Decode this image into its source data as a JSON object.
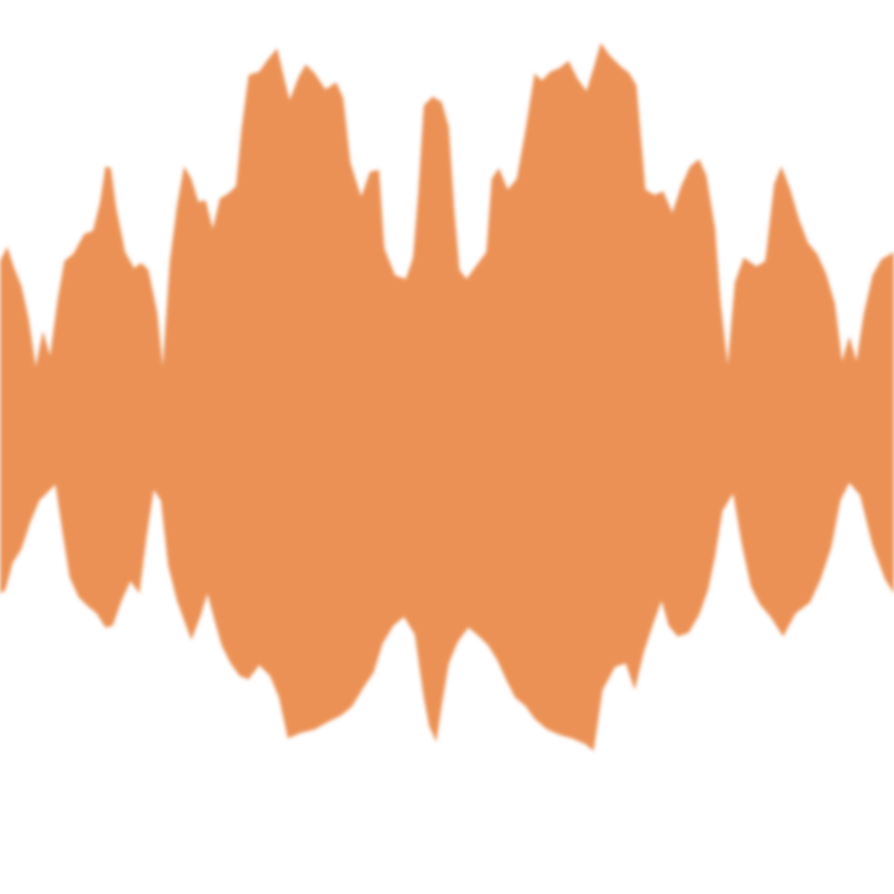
{
  "waveform": {
    "icon": "audio-waveform-icon",
    "colors": {
      "fill": "#EB9155",
      "background": "#FFFFFF"
    }
  }
}
